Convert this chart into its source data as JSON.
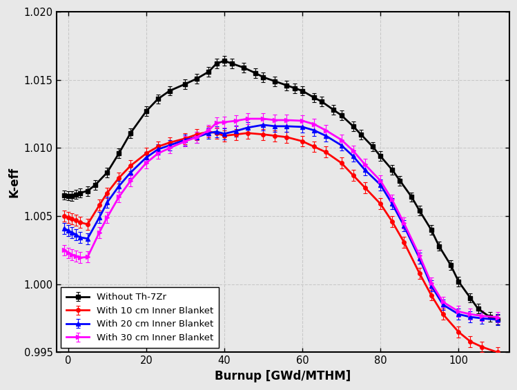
{
  "title": "",
  "xlabel": "Burnup [GWd/MTHM]",
  "ylabel": "K-eff",
  "xlim": [
    -3,
    113
  ],
  "ylim": [
    0.995,
    1.02
  ],
  "yticks": [
    0.995,
    1.0,
    1.005,
    1.01,
    1.015,
    1.02
  ],
  "xticks": [
    0,
    20,
    40,
    60,
    80,
    100
  ],
  "series": [
    {
      "label": "Without Th-7Zr",
      "color": "#000000",
      "marker": "s",
      "markersize": 4,
      "linewidth": 2.0,
      "x": [
        -1,
        0,
        1,
        2,
        3,
        5,
        7,
        10,
        13,
        16,
        20,
        23,
        26,
        30,
        33,
        36,
        38,
        40,
        42,
        45,
        48,
        50,
        53,
        56,
        58,
        60,
        63,
        65,
        68,
        70,
        73,
        75,
        78,
        80,
        83,
        85,
        88,
        90,
        93,
        95,
        98,
        100,
        103,
        105,
        108,
        110
      ],
      "y": [
        1.00655,
        1.0065,
        1.00648,
        1.0066,
        1.0067,
        1.00685,
        1.0073,
        1.0082,
        1.0096,
        1.0111,
        1.0127,
        1.0136,
        1.0142,
        1.0147,
        1.0151,
        1.0156,
        1.0162,
        1.0164,
        1.0162,
        1.0159,
        1.0155,
        1.0152,
        1.0149,
        1.0146,
        1.0144,
        1.0142,
        1.0137,
        1.0134,
        1.0128,
        1.0124,
        1.0116,
        1.011,
        1.0101,
        1.0094,
        1.0084,
        1.0076,
        1.0064,
        1.0054,
        1.004,
        1.0028,
        1.0014,
        1.0002,
        0.999,
        0.9982,
        0.9976,
        0.9974
      ],
      "yerr": 0.00035
    },
    {
      "label": "With 10 cm Inner Blanket",
      "color": "#ff0000",
      "marker": "o",
      "markersize": 4,
      "linewidth": 2.0,
      "x": [
        -1,
        0,
        1,
        2,
        3,
        5,
        8,
        10,
        13,
        16,
        20,
        23,
        26,
        30,
        33,
        36,
        38,
        40,
        43,
        46,
        50,
        53,
        56,
        60,
        63,
        66,
        70,
        73,
        76,
        80,
        83,
        86,
        90,
        93,
        96,
        100,
        103,
        106,
        110
      ],
      "y": [
        1.005,
        1.0049,
        1.0048,
        1.0047,
        1.00455,
        1.0044,
        1.0058,
        1.0067,
        1.0078,
        1.0087,
        1.0096,
        1.0101,
        1.0104,
        1.0107,
        1.011,
        1.0112,
        1.0111,
        1.0109,
        1.011,
        1.0111,
        1.011,
        1.0109,
        1.0108,
        1.0105,
        1.0101,
        1.0097,
        1.0089,
        1.008,
        1.0071,
        1.0059,
        1.0046,
        1.0031,
        1.0008,
        0.9992,
        0.9978,
        0.9965,
        0.9958,
        0.9954,
        0.995
      ],
      "yerr": 0.0004
    },
    {
      "label": "With 20 cm Inner Blanket",
      "color": "#0000ff",
      "marker": "^",
      "markersize": 4,
      "linewidth": 2.0,
      "x": [
        -1,
        0,
        1,
        2,
        3,
        5,
        8,
        10,
        13,
        16,
        20,
        23,
        26,
        30,
        33,
        36,
        38,
        40,
        43,
        46,
        50,
        53,
        56,
        60,
        63,
        66,
        70,
        73,
        76,
        80,
        83,
        86,
        90,
        93,
        96,
        100,
        103,
        106,
        110
      ],
      "y": [
        1.0041,
        1.00395,
        1.0038,
        1.00365,
        1.00345,
        1.00335,
        1.0049,
        1.006,
        1.0072,
        1.0082,
        1.0093,
        1.0099,
        1.0102,
        1.0106,
        1.0108,
        1.0111,
        1.0112,
        1.01105,
        1.01125,
        1.0115,
        1.0117,
        1.0116,
        1.0116,
        1.01155,
        1.0113,
        1.0109,
        1.0102,
        1.0094,
        1.0084,
        1.0073,
        1.0059,
        1.0043,
        1.0019,
        0.9999,
        0.9985,
        0.9978,
        0.9976,
        0.9975,
        0.9974
      ],
      "yerr": 0.0004
    },
    {
      "label": "With 30 cm Inner Blanket",
      "color": "#ff00ff",
      "marker": ">",
      "markersize": 4,
      "linewidth": 2.0,
      "x": [
        -1,
        0,
        1,
        2,
        3,
        5,
        8,
        10,
        13,
        16,
        20,
        23,
        26,
        30,
        33,
        36,
        38,
        40,
        43,
        46,
        50,
        53,
        56,
        60,
        63,
        66,
        70,
        73,
        76,
        80,
        83,
        86,
        90,
        93,
        96,
        100,
        103,
        106,
        110
      ],
      "y": [
        1.0025,
        1.0023,
        1.00215,
        1.00205,
        1.00195,
        1.002,
        1.0038,
        1.0049,
        1.0064,
        1.0076,
        1.0089,
        1.0096,
        1.01,
        1.0105,
        1.0108,
        1.0113,
        1.01185,
        1.0119,
        1.012,
        1.01215,
        1.01215,
        1.01205,
        1.01205,
        1.012,
        1.01175,
        1.0113,
        1.0106,
        1.0098,
        1.0088,
        1.0076,
        1.0062,
        1.0045,
        1.0021,
        1.0001,
        0.9987,
        0.998,
        0.9978,
        0.99768,
        0.99758
      ],
      "yerr": 0.0004
    }
  ],
  "legend_loc": "lower left",
  "grid_color": "#c8c8c8",
  "grid_linestyle": "--",
  "background_color": "#e8e8e8",
  "axes_background": "#e8e8e8",
  "figure_width": 7.49,
  "figure_height": 5.65,
  "dpi": 100
}
